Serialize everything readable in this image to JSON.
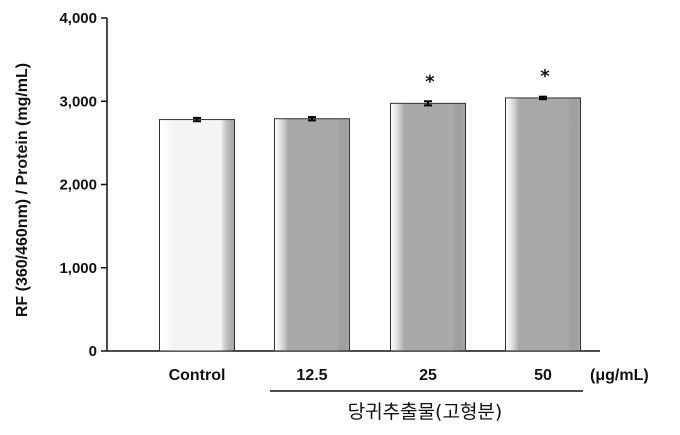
{
  "chart_data": {
    "type": "bar",
    "categories": [
      "Control",
      "12.5",
      "25",
      "50"
    ],
    "values": [
      2780,
      2790,
      2975,
      3040
    ],
    "errors": [
      20,
      20,
      25,
      15
    ],
    "significance": [
      "",
      "",
      "*",
      "*"
    ],
    "bar_colors": [
      "#f4f4f4",
      "#a9a9a9",
      "#a9a9a9",
      "#a9a9a9"
    ],
    "ylabel": "RF (360/460nm) / Protein (mg/mL)",
    "ylim": [
      0,
      4000
    ],
    "yticks": [
      0,
      1000,
      2000,
      3000,
      4000
    ],
    "ytick_labels": [
      "0",
      "1,000",
      "2,000",
      "3,000",
      "4,000"
    ],
    "unit_label": "(μg/mL)",
    "group_label": "당귀추출물(고형분)",
    "grid": false
  }
}
